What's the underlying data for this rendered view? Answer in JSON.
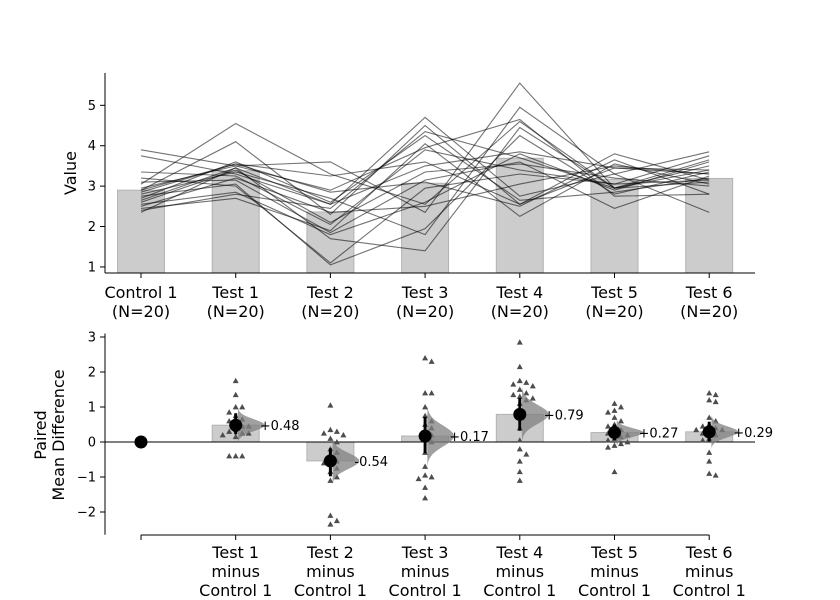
{
  "chart_data": [
    {
      "type": "bar",
      "subtype": "paired-swarm",
      "ylabel": "Value",
      "ylim": [
        0.85,
        5.8
      ],
      "yticks": [
        1,
        2,
        3,
        4,
        5
      ],
      "categories": [
        "Control 1",
        "Test 1",
        "Test 2",
        "Test 3",
        "Test 4",
        "Test 5",
        "Test 6"
      ],
      "category_n": [
        "(N=20)",
        "(N=20)",
        "(N=20)",
        "(N=20)",
        "(N=20)",
        "(N=20)",
        "(N=20)"
      ],
      "bar_values": [
        2.9,
        3.38,
        2.36,
        3.07,
        3.69,
        3.17,
        3.19
      ],
      "paired_series": [
        [
          2.9,
          3.55,
          3.25,
          3.6,
          2.55,
          3.45,
          3.3
        ],
        [
          3.05,
          4.55,
          3.3,
          2.55,
          4.6,
          2.95,
          3.4
        ],
        [
          2.65,
          3.45,
          1.7,
          1.4,
          4.45,
          2.95,
          3.1
        ],
        [
          3.9,
          3.5,
          3.6,
          2.35,
          5.55,
          2.95,
          3.5
        ],
        [
          3.75,
          3.3,
          2.55,
          4.7,
          2.75,
          3.3,
          2.35
        ],
        [
          3.2,
          3.0,
          1.1,
          2.95,
          3.3,
          3.05,
          3.75
        ],
        [
          2.35,
          3.45,
          2.55,
          3.5,
          3.85,
          3.45,
          3.4
        ],
        [
          2.45,
          2.7,
          1.9,
          4.05,
          2.25,
          3.55,
          3.05
        ],
        [
          2.9,
          4.1,
          2.3,
          4.5,
          2.55,
          3.8,
          3.15
        ],
        [
          2.85,
          3.55,
          2.85,
          3.1,
          2.5,
          3.65,
          2.8
        ],
        [
          2.75,
          3.05,
          1.05,
          1.95,
          4.25,
          2.8,
          3.35
        ],
        [
          3.1,
          3.15,
          1.85,
          3.15,
          3.6,
          2.45,
          3.25
        ],
        [
          2.8,
          3.35,
          2.7,
          1.8,
          4.95,
          3.3,
          3.85
        ],
        [
          2.55,
          2.85,
          1.8,
          2.6,
          3.8,
          2.9,
          3.6
        ],
        [
          3.35,
          3.25,
          2.05,
          3.9,
          3.4,
          3.05,
          3.15
        ],
        [
          2.95,
          3.5,
          2.9,
          3.95,
          4.65,
          2.75,
          2.8
        ],
        [
          2.6,
          3.4,
          2.1,
          3.35,
          3.55,
          3.2,
          3.0
        ],
        [
          2.5,
          3.2,
          2.35,
          2.5,
          3.05,
          3.5,
          3.3
        ],
        [
          2.7,
          3.6,
          2.6,
          4.25,
          2.65,
          2.85,
          3.2
        ],
        [
          2.4,
          2.8,
          2.45,
          4.35,
          3.7,
          2.95,
          3.65
        ]
      ]
    },
    {
      "type": "scatter",
      "subtype": "paired-mean-difference",
      "ylabel_lines": [
        "Paired",
        "Mean Difference"
      ],
      "ylim": [
        -2.65,
        3.1
      ],
      "yticks": [
        -2,
        -1,
        0,
        1,
        2,
        3
      ],
      "categories": [
        "",
        "Test 1",
        "Test 2",
        "Test 3",
        "Test 4",
        "Test 5",
        "Test 6"
      ],
      "category_lines": [
        [],
        [
          "Test 1",
          "minus",
          "Control 1"
        ],
        [
          "Test 2",
          "minus",
          "Control 1"
        ],
        [
          "Test 3",
          "minus",
          "Control 1"
        ],
        [
          "Test 4",
          "minus",
          "Control 1"
        ],
        [
          "Test 5",
          "minus",
          "Control 1"
        ],
        [
          "Test 6",
          "minus",
          "Control 1"
        ]
      ],
      "mean_differences": [
        0,
        0.48,
        -0.54,
        0.17,
        0.79,
        0.27,
        0.29
      ],
      "delta_labels": [
        "",
        "+0.48",
        "-0.54",
        "+0.17",
        "+0.79",
        "+0.27",
        "+0.29"
      ],
      "ci": [
        [
          0,
          0
        ],
        [
          0.22,
          0.82
        ],
        [
          -0.98,
          -0.18
        ],
        [
          -0.32,
          0.72
        ],
        [
          0.32,
          1.26
        ],
        [
          0.05,
          0.5
        ],
        [
          0.02,
          0.58
        ]
      ],
      "differences": [
        [],
        [
          1.75,
          1.35,
          1.0,
          1.0,
          0.85,
          0.75,
          0.65,
          0.6,
          0.55,
          0.45,
          0.45,
          0.35,
          0.3,
          0.25,
          0.25,
          0.2,
          0.15,
          -0.4,
          -0.4,
          -0.4
        ],
        [
          1.05,
          0.35,
          0.3,
          0.25,
          0.2,
          0.1,
          0.0,
          -0.2,
          -0.3,
          -0.4,
          -0.55,
          -0.65,
          -0.75,
          -0.85,
          -1.0,
          -1.1,
          -2.1,
          -2.25,
          -2.35,
          -0.6
        ],
        [
          2.4,
          2.3,
          1.4,
          1.4,
          1.0,
          0.75,
          0.6,
          0.5,
          0.4,
          0.3,
          0.2,
          0.1,
          0.0,
          -0.3,
          -0.7,
          -0.95,
          -1.0,
          -1.05,
          -1.3,
          -1.6
        ],
        [
          2.85,
          2.15,
          1.75,
          1.7,
          1.65,
          1.6,
          1.5,
          1.4,
          1.35,
          1.3,
          1.25,
          1.2,
          1.1,
          0.05,
          -0.2,
          -0.35,
          -0.55,
          -0.85,
          -1.1,
          0.4
        ],
        [
          1.1,
          1.0,
          0.9,
          0.85,
          0.7,
          0.6,
          0.5,
          0.45,
          0.35,
          0.3,
          0.25,
          0.2,
          0.15,
          0.1,
          0.05,
          0.0,
          -0.05,
          -0.1,
          -0.15,
          -0.85
        ],
        [
          1.4,
          1.35,
          1.2,
          1.15,
          0.7,
          0.6,
          0.5,
          0.45,
          0.4,
          0.35,
          0.35,
          0.3,
          0.25,
          0.2,
          0.1,
          0.05,
          -0.3,
          -0.55,
          -0.9,
          -0.95
        ]
      ]
    }
  ]
}
